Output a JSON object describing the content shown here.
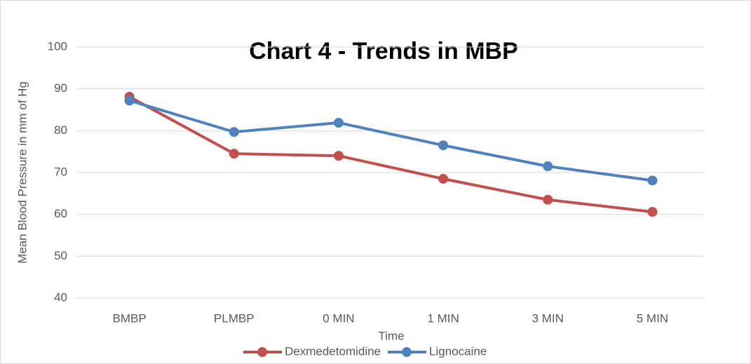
{
  "chart_data": {
    "type": "line",
    "title": "Chart 4 - Trends in MBP",
    "x_label": "Time",
    "y_label": "Mean Blood Pressure in mm of Hg",
    "categories": [
      "BMBP",
      "PLMBP",
      "0 MIN",
      "1 MIN",
      "3 MIN",
      "5 MIN"
    ],
    "series": [
      {
        "name": "Dexmedetomidine",
        "color": "#c0504d",
        "values": [
          88.1,
          74.5,
          74.0,
          68.5,
          63.5,
          60.6
        ]
      },
      {
        "name": "Lignocaine",
        "color": "#4f81bd",
        "values": [
          87.2,
          79.7,
          81.9,
          76.5,
          71.5,
          68.1
        ]
      }
    ],
    "ylim": [
      40,
      100
    ],
    "yticks": [
      40,
      50,
      60,
      70,
      80,
      90,
      100
    ],
    "grid": true,
    "legend": "bottom"
  }
}
